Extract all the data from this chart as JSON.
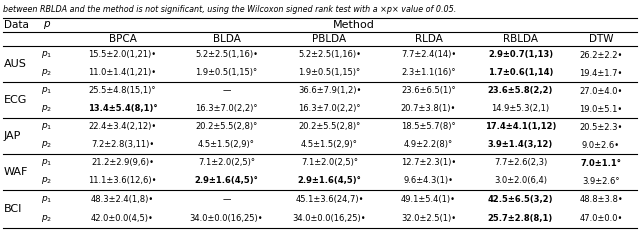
{
  "caption": "between RBLDA and the method is not significant, using the Wilcoxon signed rank test with a ×p× value of 0.05.",
  "col_headers": [
    "BPCA",
    "BLDA",
    "PBLDA",
    "RLDA",
    "RBLDA",
    "DTW"
  ],
  "row_headers": [
    "AUS",
    "ECG",
    "JAP",
    "WAF",
    "BCI"
  ],
  "rows": {
    "AUS": {
      "p1": [
        {
          "text": "15.5±2.0(1,21)",
          "sup": "•",
          "bold": false
        },
        {
          "text": "5.2±2.5(1,16)",
          "sup": "•",
          "bold": false
        },
        {
          "text": "5.2±2.5(1,16)",
          "sup": "•",
          "bold": false
        },
        {
          "text": "7.7±2.4(14)",
          "sup": "•",
          "bold": false
        },
        {
          "text": "2.9±0.7(1,13)",
          "sup": "",
          "bold": true
        },
        {
          "text": "26.2±2.2",
          "sup": "•",
          "bold": false
        }
      ],
      "p2": [
        {
          "text": "11.0±1.4(1,21)",
          "sup": "•",
          "bold": false
        },
        {
          "text": "1.9±0.5(1,15)",
          "sup": "°",
          "bold": false
        },
        {
          "text": "1.9±0.5(1,15)",
          "sup": "°",
          "bold": false
        },
        {
          "text": "2.3±1.1(16)",
          "sup": "°",
          "bold": false
        },
        {
          "text": "1.7±0.6(1,14)",
          "sup": "",
          "bold": true
        },
        {
          "text": "19.4±1.7",
          "sup": "•",
          "bold": false
        }
      ]
    },
    "ECG": {
      "p1": [
        {
          "text": "25.5±4.8(15,1)",
          "sup": "°",
          "bold": false
        },
        {
          "text": "—",
          "sup": "",
          "bold": false
        },
        {
          "text": "36.6±7.9(1,2)",
          "sup": "•",
          "bold": false
        },
        {
          "text": "23.6±6.5(1)",
          "sup": "°",
          "bold": false
        },
        {
          "text": "23.6±5.8(2,2)",
          "sup": "",
          "bold": true
        },
        {
          "text": "27.0±4.0",
          "sup": "•",
          "bold": false
        }
      ],
      "p2": [
        {
          "text": "13.4±5.4(8,1)",
          "sup": "°",
          "bold": true
        },
        {
          "text": "16.3±7.0(2,2)",
          "sup": "°",
          "bold": false
        },
        {
          "text": "16.3±7.0(2,2)",
          "sup": "°",
          "bold": false
        },
        {
          "text": "20.7±3.8(1)",
          "sup": "•",
          "bold": false
        },
        {
          "text": "14.9±5.3(2,1)",
          "sup": "",
          "bold": false
        },
        {
          "text": "19.0±5.1",
          "sup": "•",
          "bold": false
        }
      ]
    },
    "JAP": {
      "p1": [
        {
          "text": "22.4±3.4(2,12)",
          "sup": "•",
          "bold": false
        },
        {
          "text": "20.2±5.5(2,8)",
          "sup": "°",
          "bold": false
        },
        {
          "text": "20.2±5.5(2,8)",
          "sup": "°",
          "bold": false
        },
        {
          "text": "18.5±5.7(8)",
          "sup": "°",
          "bold": false
        },
        {
          "text": "17.4±4.1(1,12)",
          "sup": "",
          "bold": true
        },
        {
          "text": "20.5±2.3",
          "sup": "•",
          "bold": false
        }
      ],
      "p2": [
        {
          "text": "7.2±2.8(3,11)",
          "sup": "•",
          "bold": false
        },
        {
          "text": "4.5±1.5(2,9)",
          "sup": "°",
          "bold": false
        },
        {
          "text": "4.5±1.5(2,9)",
          "sup": "°",
          "bold": false
        },
        {
          "text": "4.9±2.2(8)",
          "sup": "°",
          "bold": false
        },
        {
          "text": "3.9±1.4(3,12)",
          "sup": "",
          "bold": true
        },
        {
          "text": "9.0±2.6",
          "sup": "•",
          "bold": false
        }
      ]
    },
    "WAF": {
      "p1": [
        {
          "text": "21.2±2.9(9,6)",
          "sup": "•",
          "bold": false
        },
        {
          "text": "7.1±2.0(2,5)",
          "sup": "°",
          "bold": false
        },
        {
          "text": "7.1±2.0(2,5)",
          "sup": "°",
          "bold": false
        },
        {
          "text": "12.7±2.3(1)",
          "sup": "•",
          "bold": false
        },
        {
          "text": "7.7±2.6(2,3)",
          "sup": "",
          "bold": false
        },
        {
          "text": "7.0±1.1",
          "sup": "°",
          "bold": true
        }
      ],
      "p2": [
        {
          "text": "11.1±3.6(12,6)",
          "sup": "•",
          "bold": false
        },
        {
          "text": "2.9±1.6(4,5)",
          "sup": "°",
          "bold": true
        },
        {
          "text": "2.9±1.6(4,5)",
          "sup": "°",
          "bold": true
        },
        {
          "text": "9.6±4.3(1)",
          "sup": "•",
          "bold": false
        },
        {
          "text": "3.0±2.0(6,4)",
          "sup": "",
          "bold": false
        },
        {
          "text": "3.9±2.6",
          "sup": "°",
          "bold": false
        }
      ]
    },
    "BCI": {
      "p1": [
        {
          "text": "48.3±2.4(1,8)",
          "sup": "•",
          "bold": false
        },
        {
          "text": "—",
          "sup": "",
          "bold": false
        },
        {
          "text": "45.1±3.6(24,7)",
          "sup": "•",
          "bold": false
        },
        {
          "text": "49.1±5.4(1)",
          "sup": "•",
          "bold": false
        },
        {
          "text": "42.5±6.5(3,2)",
          "sup": "",
          "bold": true
        },
        {
          "text": "48.8±3.8",
          "sup": "•",
          "bold": false
        }
      ],
      "p2": [
        {
          "text": "42.0±0.0(4,5)",
          "sup": "•",
          "bold": false
        },
        {
          "text": "34.0±0.0(16,25)",
          "sup": "•",
          "bold": false
        },
        {
          "text": "34.0±0.0(16,25)",
          "sup": "•",
          "bold": false
        },
        {
          "text": "32.0±2.5(1)",
          "sup": "•",
          "bold": false
        },
        {
          "text": "25.7±2.8(8,1)",
          "sup": "",
          "bold": true
        },
        {
          "text": "47.0±0.0",
          "sup": "•",
          "bold": false
        }
      ]
    }
  }
}
